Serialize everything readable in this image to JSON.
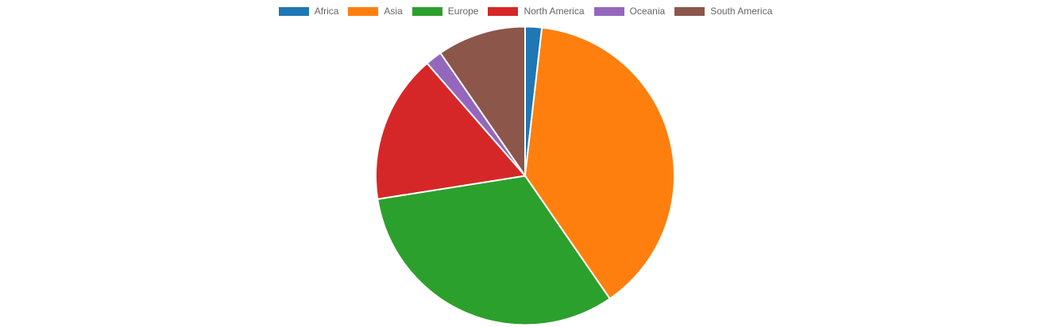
{
  "chart_data": {
    "type": "pie",
    "categories": [
      "Africa",
      "Asia",
      "Europe",
      "North America",
      "Oceania",
      "South America"
    ],
    "values": [
      1.8,
      38.6,
      32.1,
      16.1,
      1.8,
      9.6
    ],
    "colors": [
      "#1f77b4",
      "#ff7f0e",
      "#2ca02c",
      "#d62728",
      "#9467bd",
      "#8c564b"
    ],
    "legend_position": "top"
  }
}
